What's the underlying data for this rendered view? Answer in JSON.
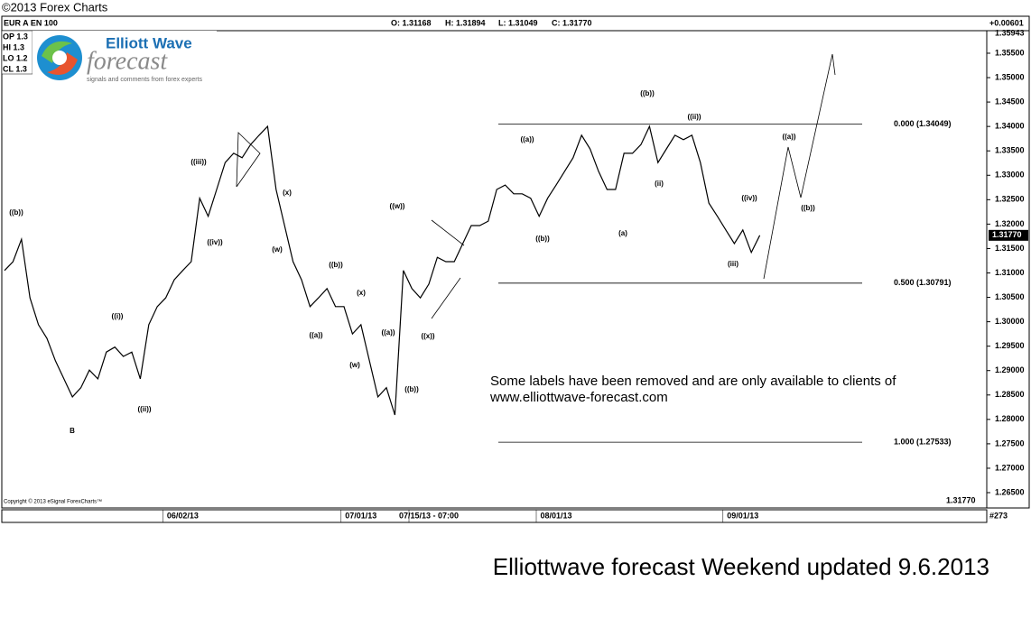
{
  "chart_data": {
    "type": "line",
    "source": "©2013 Forex Charts",
    "header": {
      "symbol": "EUR A  EN  100",
      "open": "O: 1.31168",
      "high": "H: 1.31894",
      "low": "L: 1.31049",
      "close": "C: 1.31770",
      "change": "+0.00601"
    },
    "info_box": [
      "OP 1.3",
      "HI  1.3",
      "LO  1.2",
      "CL  1.3"
    ],
    "logo": {
      "name": "Elliott Wave",
      "word": "forecast",
      "tagline": "signals and comments from forex experts"
    },
    "copyright": "Copyright © 2013 eSignal ForexCharts™",
    "categories": [
      null,
      null,
      null,
      null,
      null,
      null,
      null,
      null,
      null,
      null,
      null,
      null,
      null,
      null,
      null,
      null,
      null,
      null,
      null,
      null,
      null,
      "06/02/13",
      null,
      null,
      null,
      null,
      null,
      null,
      null,
      null,
      null,
      null,
      null,
      null,
      null,
      null,
      null,
      null,
      null,
      null,
      null,
      null,
      "07/01/13",
      null,
      null,
      null,
      null,
      null,
      null,
      null,
      "07/15/13 - 07:00",
      null,
      null,
      null,
      null,
      null,
      null,
      null,
      null,
      null,
      null,
      null,
      null,
      null,
      null,
      "08/01/13",
      null,
      null,
      null,
      null,
      null,
      null,
      null,
      null,
      null,
      null,
      null,
      null,
      null,
      null,
      null,
      null,
      null,
      null,
      null,
      null,
      null,
      "09/01/13",
      null,
      null
    ],
    "values": [
      1.3105,
      1.3123,
      1.3169,
      1.3049,
      1.2994,
      1.2966,
      1.292,
      1.2883,
      1.2846,
      1.2865,
      1.2901,
      1.2883,
      1.2938,
      1.2948,
      1.2929,
      1.2938,
      1.2883,
      1.2994,
      1.3031,
      1.3049,
      1.3086,
      1.3105,
      1.3123,
      1.3253,
      1.3216,
      1.3271,
      1.3326,
      1.3345,
      1.3336,
      1.3363,
      1.3382,
      1.34,
      1.3271,
      1.3197,
      1.3123,
      1.3086,
      1.3031,
      1.3049,
      1.3068,
      1.3031,
      1.3031,
      1.2975,
      1.2994,
      1.292,
      1.2846,
      1.2865,
      1.2809,
      1.3105,
      1.3068,
      1.3049,
      1.3077,
      1.3132,
      1.3123,
      1.3123,
      1.316,
      1.3197,
      1.3197,
      1.3206,
      1.3271,
      1.328,
      1.3262,
      1.3262,
      1.3253,
      1.3216,
      1.3253,
      1.328,
      1.3308,
      1.3336,
      1.3382,
      1.3354,
      1.3308,
      1.3271,
      1.3271,
      1.3345,
      1.3345,
      1.3363,
      1.34,
      1.3326,
      1.3354,
      1.3382,
      1.3373,
      1.3382,
      1.3326,
      1.3243,
      1.3216,
      1.3188,
      1.316,
      1.3188,
      1.3142,
      1.3177
    ],
    "color": "#000000",
    "ylim": [
      1.26186,
      1.35943
    ],
    "yticks": [
      {
        "value": 1.265,
        "label": "1.26500"
      },
      {
        "value": 1.27,
        "label": "1.27000"
      },
      {
        "value": 1.275,
        "label": "1.27500"
      },
      {
        "value": 1.28,
        "label": "1.28000"
      },
      {
        "value": 1.285,
        "label": "1.28500"
      },
      {
        "value": 1.29,
        "label": "1.29000"
      },
      {
        "value": 1.295,
        "label": "1.29500"
      },
      {
        "value": 1.3,
        "label": "1.30000"
      },
      {
        "value": 1.305,
        "label": "1.30500"
      },
      {
        "value": 1.31,
        "label": "1.31000"
      },
      {
        "value": 1.315,
        "label": "1.31500"
      },
      {
        "value": 1.32,
        "label": "1.32000"
      },
      {
        "value": 1.325,
        "label": "1.32500"
      },
      {
        "value": 1.33,
        "label": "1.33000"
      },
      {
        "value": 1.335,
        "label": "1.33500"
      },
      {
        "value": 1.34,
        "label": "1.34000"
      },
      {
        "value": 1.345,
        "label": "1.34500"
      },
      {
        "value": 1.35,
        "label": "1.35000"
      },
      {
        "value": 1.355,
        "label": "1.35500"
      }
    ],
    "last_price": {
      "value": 1.3177,
      "label": "1.31770"
    },
    "bar_count": "#273",
    "fib_levels": [
      {
        "value": 1.34049,
        "label": "0.000 (1.34049)"
      },
      {
        "value": 1.30791,
        "label": "0.500 (1.30791)"
      },
      {
        "value": 1.27533,
        "label": "1.000 (1.27533)"
      }
    ],
    "wave_labels": [
      "((b))",
      "B",
      "((i))",
      "((ii))",
      "((iii))",
      "((iv))",
      "(x)",
      "(w)",
      "((a))",
      "((b))",
      "(x)",
      "(w)",
      "((a))",
      "((w))",
      "((b))",
      "((x))",
      "((a))",
      "((b))",
      "(a)",
      "((b))",
      "((ii))",
      "(ii)",
      "((iv))",
      "(iii)",
      "((a))",
      "((b))"
    ],
    "note": [
      "Some labels have been removed and are only available to clients of",
      "www.elliottwave-forecast.com"
    ],
    "footer": "Elliottwave forecast Weekend updated 9.6.2013"
  }
}
